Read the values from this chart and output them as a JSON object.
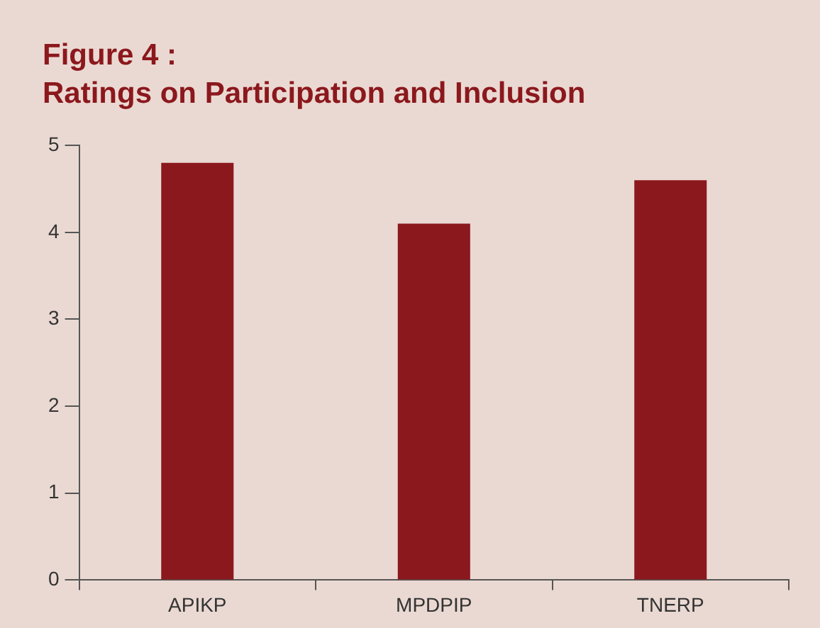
{
  "chart_data": {
    "type": "bar",
    "title": "Figure 4 :\nRatings on Participation and Inclusion",
    "categories": [
      "APIKP",
      "MPDPIP",
      "TNERP"
    ],
    "values": [
      4.8,
      4.1,
      4.6
    ],
    "color": "#8b181d",
    "ylim": [
      0,
      5
    ],
    "yticks": [
      0,
      1,
      2,
      3,
      4,
      5
    ],
    "grid": false,
    "legend": false
  }
}
